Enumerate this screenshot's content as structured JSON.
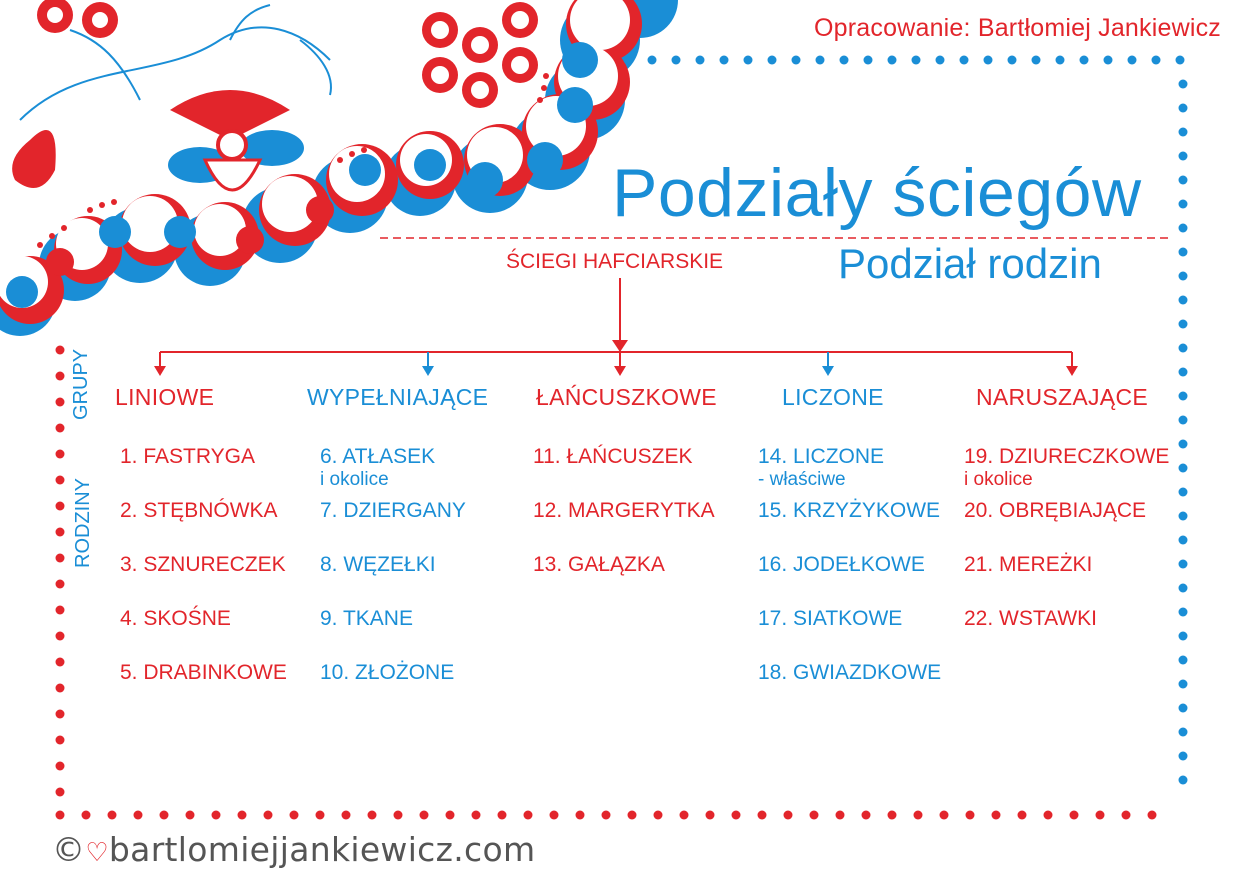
{
  "colors": {
    "red": "#e2252b",
    "blue": "#1a8ed6",
    "footer": "#555555"
  },
  "author": "Opracowanie: Bartłomiej Jankiewicz",
  "title": "Podziały ściegów",
  "subtitle": "Podział rodzin",
  "root": "ŚCIEGI HAFCIARSKIE",
  "side_labels": {
    "groups": "GRUPY",
    "families": "RODZINY"
  },
  "groups": [
    {
      "name": "LINIOWE",
      "color": "red",
      "families": [
        {
          "label": "1. FASTRYGA"
        },
        {
          "label": "2. STĘBNÓWKA"
        },
        {
          "label": "3. SZNURECZEK"
        },
        {
          "label": "4. SKOŚNE"
        },
        {
          "label": "5. DRABINKOWE"
        }
      ]
    },
    {
      "name": "WYPEŁNIAJĄCE",
      "color": "blue",
      "families": [
        {
          "label": "6. ATŁASEK",
          "sub": "i okolice"
        },
        {
          "label": "7. DZIERGANY"
        },
        {
          "label": "8. WĘZEŁKI"
        },
        {
          "label": "9. TKANE"
        },
        {
          "label": "10. ZŁOŻONE"
        }
      ]
    },
    {
      "name": "ŁAŃCUSZKOWE",
      "color": "red",
      "families": [
        {
          "label": "11. ŁAŃCUSZEK"
        },
        {
          "label": "12. MARGERYTKA"
        },
        {
          "label": "13. GAŁĄZKA"
        }
      ]
    },
    {
      "name": "LICZONE",
      "color": "blue",
      "families": [
        {
          "label": "14. LICZONE",
          "sub": "- właściwe"
        },
        {
          "label": "15. KRZYŻYKOWE"
        },
        {
          "label": "16. JODEŁKOWE"
        },
        {
          "label": "17. SIATKOWE"
        },
        {
          "label": "18. GWIAZDKOWE"
        }
      ]
    },
    {
      "name": "NARUSZAJĄCE",
      "color": "red",
      "families": [
        {
          "label": "19. DZIURECZKOWE",
          "sub": "i okolice"
        },
        {
          "label": "20. OBRĘBIAJĄCE"
        },
        {
          "label": "21. MEREŻKI"
        },
        {
          "label": "22. WSTAWKI"
        }
      ]
    }
  ],
  "footer": {
    "copyright": "©",
    "site": "bartlomiejjankiewicz.com",
    "heart_icon": "heart-icon"
  }
}
